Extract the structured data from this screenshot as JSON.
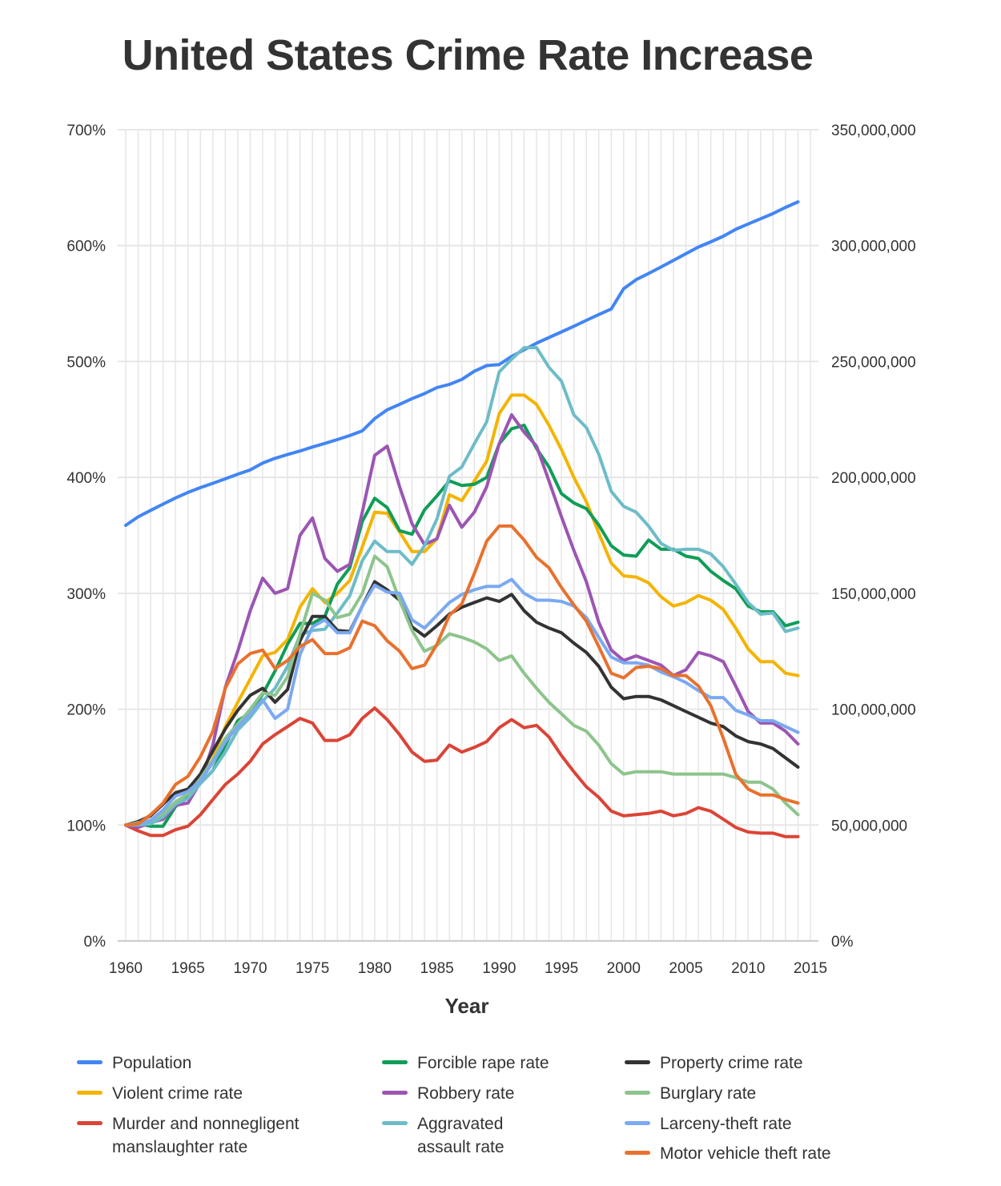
{
  "chart_data": {
    "type": "line",
    "title": "United States Crime Rate Increase",
    "xlabel": "Year",
    "x_ticks": [
      "1960",
      "1965",
      "1970",
      "1975",
      "1980",
      "1985",
      "1990",
      "1995",
      "2000",
      "2005",
      "2010",
      "2015"
    ],
    "y_left_ticks": [
      "0%",
      "100%",
      "200%",
      "300%",
      "400%",
      "500%",
      "600%",
      "700%"
    ],
    "y_right_ticks": [
      "0%",
      "50,000,000",
      "100,000,000",
      "150,000,000",
      "200,000,000",
      "250,000,000",
      "300,000,000",
      "350,000,000"
    ],
    "ylim_left": [
      0,
      700
    ],
    "ylim_right": [
      0,
      350000000
    ],
    "xlim": [
      1960,
      2015
    ],
    "grid": "vertical lines every year, horizontal lines every 100%",
    "x": [
      1960,
      1961,
      1962,
      1963,
      1964,
      1965,
      1966,
      1967,
      1968,
      1969,
      1970,
      1971,
      1972,
      1973,
      1974,
      1975,
      1976,
      1977,
      1978,
      1979,
      1980,
      1981,
      1982,
      1983,
      1984,
      1985,
      1986,
      1987,
      1988,
      1989,
      1990,
      1991,
      1992,
      1993,
      1994,
      1995,
      1996,
      1997,
      1998,
      1999,
      2000,
      2001,
      2002,
      2003,
      2004,
      2005,
      2006,
      2007,
      2008,
      2009,
      2010,
      2011,
      2012,
      2013,
      2014
    ],
    "series": [
      {
        "name": "Population",
        "axis": "right",
        "color": "#4285F4",
        "values": [
          179323175,
          182992000,
          185771000,
          188483000,
          191141000,
          193526000,
          195576000,
          197457000,
          199399000,
          201385000,
          203235298,
          206212000,
          208230000,
          209851000,
          211392000,
          213124000,
          214659000,
          216332000,
          218059000,
          220099000,
          225349264,
          229146000,
          231534000,
          233981000,
          236158000,
          238740000,
          240132887,
          242282918,
          245807000,
          248239000,
          248709873,
          252177000,
          255082000,
          257908000,
          260341000,
          262755000,
          265228572,
          267783607,
          270248003,
          272690813,
          281421906,
          285317559,
          287973924,
          290788976,
          293656842,
          296507061,
          299398484,
          301621157,
          304059724,
          307006550,
          309330219,
          311587816,
          313873685,
          316497531,
          318857056
        ]
      },
      {
        "name": "Violent crime rate",
        "axis": "left",
        "color": "#F4B400",
        "values": [
          100,
          101,
          103,
          107,
          118,
          125,
          138,
          157,
          185,
          206,
          226,
          246,
          249,
          260,
          288,
          304,
          292,
          300,
          311,
          340,
          370,
          369,
          353,
          336,
          336,
          347,
          385,
          380,
          397,
          414,
          455,
          471,
          471,
          463,
          445,
          424,
          400,
          379,
          352,
          326,
          315,
          314,
          309,
          297,
          289,
          292,
          298,
          294,
          286,
          270,
          252,
          241,
          241,
          231,
          229
        ]
      },
      {
        "name": "Murder and nonnegligent manslaughter rate",
        "axis": "left",
        "color": "#DB4437",
        "values": [
          100,
          95,
          91,
          91,
          96,
          99,
          109,
          122,
          135,
          144,
          155,
          170,
          178,
          185,
          192,
          188,
          173,
          173,
          178,
          192,
          201,
          191,
          178,
          163,
          155,
          156,
          169,
          163,
          167,
          172,
          184,
          191,
          184,
          186,
          176,
          160,
          146,
          133,
          124,
          112,
          108,
          109,
          110,
          112,
          108,
          110,
          115,
          112,
          105,
          98,
          94,
          93,
          93,
          90,
          90
        ]
      },
      {
        "name": "Forcible rape rate",
        "axis": "left",
        "color": "#0F9D58",
        "values": [
          100,
          101,
          99,
          99,
          116,
          124,
          136,
          147,
          169,
          190,
          197,
          213,
          233,
          256,
          274,
          274,
          280,
          308,
          322,
          362,
          382,
          374,
          354,
          351,
          372,
          384,
          397,
          393,
          394,
          400,
          429,
          442,
          445,
          425,
          409,
          386,
          378,
          373,
          359,
          341,
          333,
          332,
          346,
          338,
          338,
          332,
          330,
          319,
          311,
          304,
          289,
          284,
          284,
          272,
          275
        ]
      },
      {
        "name": "Robbery rate",
        "axis": "left",
        "color": "#9C55B3",
        "values": [
          100,
          98,
          102,
          105,
          117,
          119,
          137,
          169,
          219,
          250,
          285,
          313,
          300,
          304,
          350,
          365,
          330,
          319,
          325,
          370,
          419,
          427,
          392,
          360,
          342,
          347,
          376,
          357,
          370,
          392,
          429,
          454,
          439,
          427,
          397,
          366,
          337,
          310,
          275,
          251,
          242,
          246,
          242,
          238,
          229,
          234,
          249,
          246,
          241,
          220,
          198,
          188,
          188,
          181,
          170
        ]
      },
      {
        "name": "Aggravated assault rate",
        "axis": "left",
        "color": "#6DBCC8",
        "values": [
          100,
          100,
          101,
          107,
          118,
          123,
          136,
          147,
          163,
          182,
          193,
          207,
          218,
          237,
          264,
          268,
          269,
          283,
          298,
          328,
          345,
          336,
          336,
          325,
          341,
          364,
          401,
          409,
          429,
          448,
          491,
          502,
          512,
          512,
          495,
          483,
          454,
          443,
          420,
          388,
          375,
          370,
          358,
          343,
          337,
          338,
          338,
          334,
          323,
          308,
          292,
          282,
          283,
          267,
          270
        ]
      },
      {
        "name": "Property crime rate",
        "axis": "left",
        "color": "#333333",
        "values": [
          100,
          103,
          108,
          118,
          128,
          131,
          144,
          164,
          183,
          199,
          212,
          218,
          206,
          217,
          259,
          280,
          280,
          268,
          267,
          289,
          310,
          303,
          294,
          271,
          263,
          272,
          282,
          288,
          292,
          296,
          293,
          299,
          285,
          275,
          270,
          266,
          257,
          249,
          237,
          219,
          209,
          211,
          211,
          208,
          203,
          198,
          193,
          188,
          185,
          177,
          172,
          170,
          166,
          158,
          150
        ]
      },
      {
        "name": "Burglary rate",
        "axis": "left",
        "color": "#8DC48C",
        "values": [
          100,
          102,
          104,
          110,
          120,
          127,
          140,
          156,
          175,
          187,
          200,
          214,
          212,
          228,
          265,
          300,
          294,
          279,
          282,
          300,
          332,
          323,
          294,
          268,
          250,
          255,
          265,
          262,
          258,
          252,
          242,
          246,
          231,
          218,
          206,
          196,
          186,
          181,
          169,
          153,
          144,
          146,
          146,
          146,
          144,
          144,
          144,
          144,
          144,
          141,
          137,
          137,
          131,
          119,
          109
        ]
      },
      {
        "name": "Larceny-theft rate",
        "axis": "left",
        "color": "#7BA9F2",
        "values": [
          100,
          101,
          104,
          113,
          125,
          129,
          138,
          154,
          172,
          185,
          196,
          208,
          192,
          200,
          247,
          271,
          277,
          266,
          266,
          289,
          307,
          301,
          300,
          277,
          270,
          281,
          292,
          299,
          303,
          306,
          306,
          312,
          300,
          294,
          294,
          293,
          289,
          279,
          262,
          245,
          240,
          240,
          238,
          232,
          228,
          223,
          216,
          210,
          210,
          199,
          195,
          190,
          190,
          185,
          180
        ]
      },
      {
        "name": "Motor vehicle theft rate",
        "axis": "left",
        "color": "#E8712E",
        "values": [
          100,
          101,
          109,
          119,
          135,
          142,
          159,
          181,
          218,
          239,
          248,
          251,
          235,
          242,
          254,
          260,
          248,
          248,
          253,
          276,
          272,
          259,
          250,
          235,
          238,
          256,
          281,
          291,
          317,
          345,
          358,
          358,
          346,
          331,
          322,
          305,
          290,
          276,
          254,
          231,
          227,
          236,
          237,
          235,
          229,
          229,
          220,
          203,
          175,
          144,
          131,
          126,
          126,
          122,
          119
        ]
      }
    ],
    "legend_position": "bottom",
    "legend": [
      [
        "Population"
      ],
      [
        "Violent crime rate"
      ],
      [
        "Murder and nonnegligent",
        "manslaughter rate"
      ],
      [
        "Forcible rape rate"
      ],
      [
        "Robbery rate"
      ],
      [
        "Aggravated",
        "assault rate"
      ],
      [
        "Property crime rate"
      ],
      [
        "Burglary rate"
      ],
      [
        "Larceny-theft rate"
      ],
      [
        "Motor vehicle theft rate"
      ]
    ]
  }
}
